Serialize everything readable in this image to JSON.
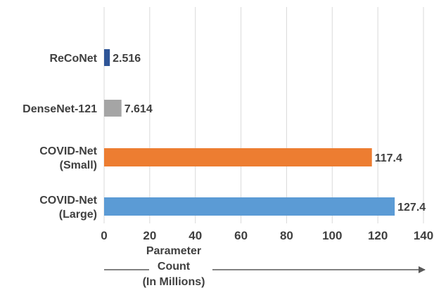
{
  "chart_data": {
    "type": "bar",
    "orientation": "horizontal",
    "categories": [
      [
        "ReCoNet"
      ],
      [
        "DenseNet-121"
      ],
      [
        "COVID-Net",
        "(Small)"
      ],
      [
        "COVID-Net",
        "(Large)"
      ]
    ],
    "values": [
      2.516,
      7.614,
      117.4,
      127.4
    ],
    "value_labels": [
      "2.516",
      "7.614",
      "117.4",
      "127.4"
    ],
    "colors": [
      "#2f5597",
      "#a5a5a5",
      "#ed7d31",
      "#5b9bd5"
    ],
    "xlabel": [
      "Parameter",
      "Count",
      "(In Millions)"
    ],
    "xlim": [
      0,
      140
    ],
    "xticks": [
      0,
      20,
      40,
      60,
      80,
      100,
      120,
      140
    ],
    "grid": true,
    "legend": "none"
  }
}
